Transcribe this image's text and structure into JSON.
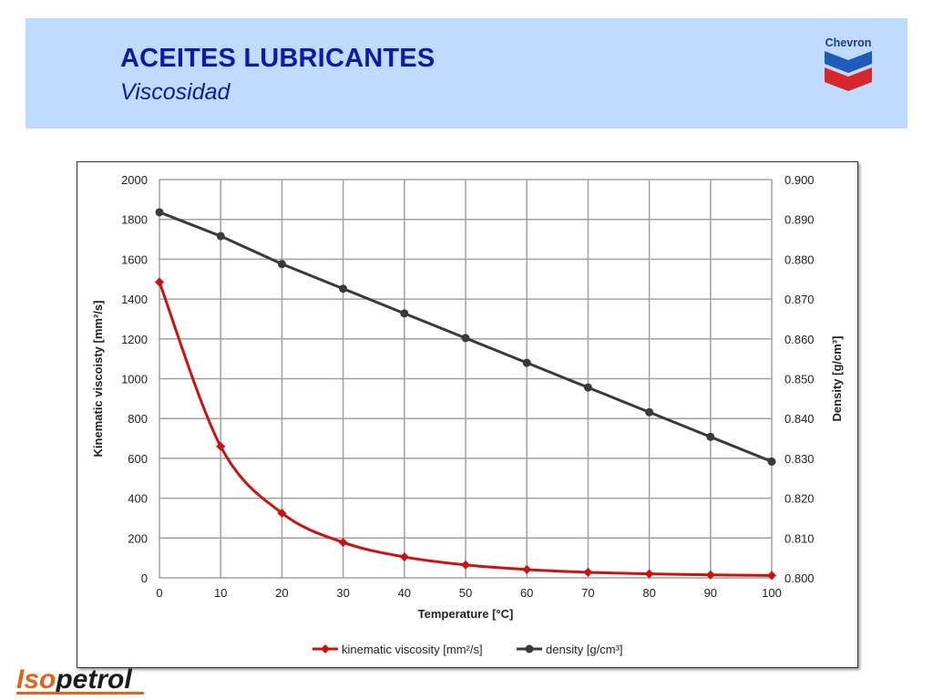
{
  "header": {
    "title": "ACEITES LUBRICANTES",
    "subtitle": "Viscosidad",
    "chevron_logo_text": "Chevron",
    "colors": {
      "banner": "#bfdbff",
      "title": "#0d1aa8"
    }
  },
  "footer": {
    "logo_text_iso": "Iso",
    "logo_text_petrol": "petrol",
    "colors": {
      "iso": "#e0651c",
      "petrol": "#1a1a1a"
    }
  },
  "chart_data": {
    "type": "line",
    "title": "",
    "xlabel": "Temperature  [°C]",
    "ylabel_left": "Kinematic viscoisty  [mm²/s]",
    "ylabel_right": "Density  [g/cm³]",
    "x": [
      0,
      10,
      20,
      30,
      40,
      50,
      60,
      70,
      80,
      90,
      100
    ],
    "x_ticks": [
      "0",
      "10",
      "20",
      "30",
      "40",
      "50",
      "60",
      "70",
      "80",
      "90",
      "100"
    ],
    "xlim": [
      0,
      100
    ],
    "ylim_left": [
      0,
      2000
    ],
    "y_ticks_left": [
      "0",
      "200",
      "400",
      "600",
      "800",
      "1000",
      "1200",
      "1400",
      "1600",
      "1800",
      "2000"
    ],
    "ylim_right": [
      0.8,
      0.9
    ],
    "y_ticks_right": [
      "0.800",
      "0.810",
      "0.820",
      "0.830",
      "0.840",
      "0.850",
      "0.860",
      "0.870",
      "0.880",
      "0.890",
      "0.900"
    ],
    "grid": true,
    "legend_position": "bottom",
    "series": [
      {
        "name": "kinematic viscosity [mm²/s]",
        "axis": "left",
        "color": "#cc1111",
        "marker": "diamond",
        "values": [
          1485,
          660,
          325,
          178,
          105,
          65,
          42,
          28,
          20,
          15,
          12
        ]
      },
      {
        "name": "density [g/cm³]",
        "axis": "right",
        "color": "#3a3a3a",
        "marker": "circle",
        "values": [
          0.8918,
          0.8858,
          0.8788,
          0.8726,
          0.8664,
          0.8602,
          0.854,
          0.8478,
          0.8416,
          0.8354,
          0.8292
        ]
      }
    ]
  }
}
